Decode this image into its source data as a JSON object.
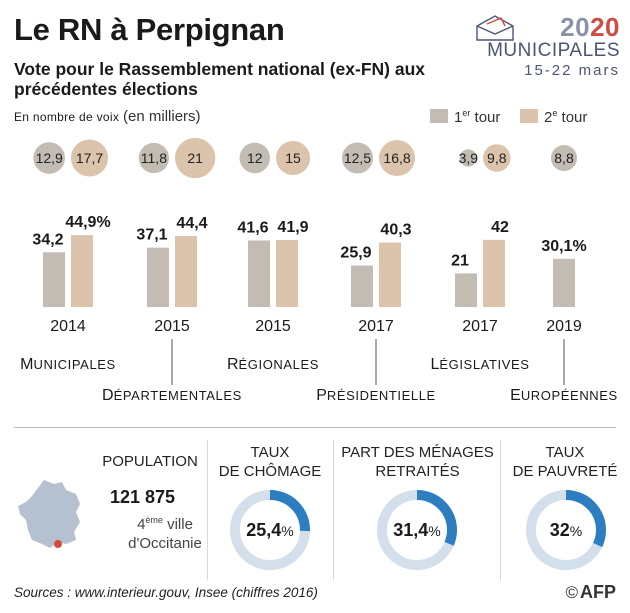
{
  "header": {
    "title": "Le RN à Perpignan",
    "subtitle": "Vote pour le Rassemblement national (ex-FN) aux précédentes élections",
    "unit_small": "En nombre de voix",
    "unit_paren": "(en milliers)"
  },
  "legend": {
    "round1_base": "1",
    "round1_sup": "er",
    "round1_word": "tour",
    "round2_base": "2",
    "round2_sup": "e",
    "round2_word": "tour"
  },
  "logo": {
    "year_a": "20",
    "year_b": "20",
    "label": "MUNICIPALES",
    "dates": "15-22 mars"
  },
  "colors": {
    "round1": "#c2bcb3",
    "round2": "#dcc3ab",
    "ring": "#2d7ec0",
    "ring_bg": "#d4dfec",
    "map": "#b5c0d0",
    "dot": "#d24a43"
  },
  "chart_data": {
    "type": "bar",
    "title": "Vote pour le Rassemblement national (ex-FN) aux précédentes élections",
    "value_type": "percent",
    "elections": [
      {
        "year": "2014",
        "name": "Municipales",
        "r1": 34.2,
        "r2": 44.9,
        "r1_label": "34,2",
        "r2_label": "44,9%",
        "votes1": "12,9",
        "votes2": "17,7",
        "v1": 12.9,
        "v2": 17.7
      },
      {
        "year": "2015",
        "name": "Départementales",
        "r1": 37.1,
        "r2": 44.4,
        "r1_label": "37,1",
        "r2_label": "44,4",
        "votes1": "11,8",
        "votes2": "21",
        "v1": 11.8,
        "v2": 21
      },
      {
        "year": "2015",
        "name": "Régionales",
        "r1": 41.6,
        "r2": 41.9,
        "r1_label": "41,6",
        "r2_label": "41,9",
        "votes1": "12",
        "votes2": "15",
        "v1": 12,
        "v2": 15
      },
      {
        "year": "2017",
        "name": "Présidentielle",
        "r1": 25.9,
        "r2": 40.3,
        "r1_label": "25,9",
        "r2_label": "40,3",
        "votes1": "12,5",
        "votes2": "16,8",
        "v1": 12.5,
        "v2": 16.8
      },
      {
        "year": "2017",
        "name": "Législatives",
        "r1": 21,
        "r2": 42,
        "r1_label": "21",
        "r2_label": "42",
        "votes1": "3,9",
        "votes2": "9,8",
        "v1": 3.9,
        "v2": 9.8
      },
      {
        "year": "2019",
        "name": "Européennes",
        "r1": 30.1,
        "r2": null,
        "r1_label": "30,1%",
        "r2_label": "",
        "votes1": "8,8",
        "votes2": "",
        "v1": 8.8,
        "v2": null
      }
    ]
  },
  "stats": {
    "population": {
      "title": "POPULATION",
      "value": "121 875",
      "rank_num": "4",
      "rank_sup": "ème",
      "rank_word": "ville",
      "region": "d'Occitanie"
    },
    "chomage": {
      "title_line1": "TAUX",
      "title_line2": "DE CHÔMAGE",
      "value": 25.4,
      "label": "25,4",
      "pct": "%"
    },
    "retraites": {
      "title_line1": "PART DES MÉNAGES",
      "title_line2": "RETRAITÉS",
      "value": 31.4,
      "label": "31,4",
      "pct": "%"
    },
    "pauvrete": {
      "title_line1": "TAUX",
      "title_line2": "DE PAUVRETÉ",
      "value": 32,
      "label": "32",
      "pct": "%"
    }
  },
  "footer": {
    "sources": "Sources : www.interieur.gouv, Insee (chiffres 2016)",
    "copyright": "©",
    "brand": "AFP"
  }
}
